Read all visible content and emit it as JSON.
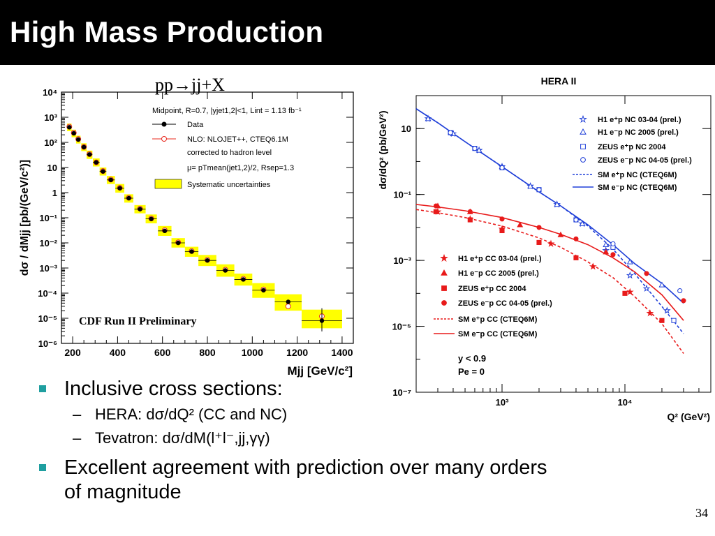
{
  "slide": {
    "title": "High Mass Production",
    "process_label": "pp→jj+X",
    "page_number": "34"
  },
  "bullets": {
    "b1": "Inclusive cross sections:",
    "b1_sub1": "HERA: dσ/dQ²  (CC and NC)",
    "b1_sub2": "Tevatron: dσ/dM(l⁺l⁻,jj,γγ)",
    "b2_line1": "Excellent agreement with prediction over many orders",
    "b2_line2": "of magnitude"
  },
  "colors": {
    "bullet_marker": "#1f9fa0",
    "data_black": "#000000",
    "nlo_red": "#e8281e",
    "systematic_yellow": "#ffff00",
    "nc_blue": "#1f3fd8",
    "cc_red": "#e81a1a"
  },
  "chart_data": [
    {
      "type": "scatter",
      "title": "",
      "xlabel": "Mjj [GeV/c²]",
      "ylabel": "dσ / dMjj [pb/(GeV/c²)]",
      "xlim": [
        150,
        1450
      ],
      "ylim": [
        1e-06,
        10000
      ],
      "y_scale": "log",
      "x_ticks": [
        "200",
        "400",
        "600",
        "800",
        "1000",
        "1200",
        "1400"
      ],
      "y_ticks": [
        "10⁴",
        "10³",
        "10²",
        "10",
        "1",
        "10⁻¹",
        "10⁻²",
        "10⁻³",
        "10⁻⁴",
        "10⁻⁵",
        "10⁻⁶"
      ],
      "legend_position": "top-right",
      "legend_header": "Midpoint, R=0.7, |yjet1,2|<1, Lint = 1.13 fb⁻¹",
      "legend": [
        "Data",
        "NLO: NLOJET++, CTEQ6.1M",
        "corrected to hadron level",
        "μ= pTmean(jet1,2)/2, Rsep=1.3",
        "Systematic uncertainties"
      ],
      "annotation": "CDF Run II Preliminary",
      "series": [
        {
          "name": "Data",
          "points": [
            [
              185,
              400
            ],
            [
              205,
              230
            ],
            [
              225,
              130
            ],
            [
              250,
              65
            ],
            [
              275,
              33
            ],
            [
              305,
              16
            ],
            [
              335,
              7
            ],
            [
              370,
              3.2
            ],
            [
              410,
              1.5
            ],
            [
              450,
              0.6
            ],
            [
              500,
              0.22
            ],
            [
              550,
              0.09
            ],
            [
              610,
              0.03
            ],
            [
              670,
              0.01
            ],
            [
              730,
              0.0045
            ],
            [
              800,
              0.002
            ],
            [
              880,
              0.0008
            ],
            [
              960,
              0.00035
            ],
            [
              1050,
              0.00013
            ],
            [
              1160,
              4.5e-05
            ],
            [
              1310,
              8e-06
            ]
          ],
          "y_err": [
            [
              1310,
              3e-06,
              2.5e-05
            ]
          ]
        },
        {
          "name": "NLO: NLOJET++, CTEQ6.1M",
          "points": [
            [
              185,
              420
            ],
            [
              205,
              240
            ],
            [
              225,
              135
            ],
            [
              250,
              66
            ],
            [
              275,
              34
            ],
            [
              305,
              16
            ],
            [
              335,
              7.2
            ],
            [
              370,
              3.3
            ],
            [
              410,
              1.55
            ],
            [
              450,
              0.62
            ],
            [
              500,
              0.23
            ],
            [
              550,
              0.093
            ],
            [
              610,
              0.032
            ],
            [
              670,
              0.0105
            ],
            [
              730,
              0.0047
            ],
            [
              800,
              0.0021
            ],
            [
              880,
              0.00085
            ],
            [
              960,
              0.00037
            ],
            [
              1050,
              0.00014
            ],
            [
              1160,
              3e-05
            ],
            [
              1310,
              1.2e-05
            ]
          ]
        },
        {
          "name": "Systematic uncertainties",
          "boxes": [
            [
              175,
              195,
              280,
              560
            ],
            [
              195,
              215,
              160,
              320
            ],
            [
              215,
              235,
              90,
              185
            ],
            [
              238,
              262,
              45,
              92
            ],
            [
              262,
              288,
              22,
              47
            ],
            [
              290,
              320,
              11,
              23
            ],
            [
              320,
              350,
              4.8,
              10
            ],
            [
              352,
              388,
              2.2,
              4.6
            ],
            [
              390,
              430,
              1,
              2.2
            ],
            [
              430,
              470,
              0.4,
              0.86
            ],
            [
              475,
              525,
              0.15,
              0.32
            ],
            [
              525,
              575,
              0.06,
              0.135
            ],
            [
              580,
              640,
              0.019,
              0.047
            ],
            [
              640,
              700,
              0.0065,
              0.0155
            ],
            [
              700,
              760,
              0.0028,
              0.007
            ],
            [
              760,
              840,
              0.0012,
              0.0033
            ],
            [
              840,
              920,
              0.00045,
              0.0014
            ],
            [
              920,
              1000,
              0.0002,
              0.0006
            ],
            [
              1000,
              1100,
              6.5e-05,
              0.00025
            ],
            [
              1100,
              1220,
              2e-05,
              9e-05
            ],
            [
              1220,
              1400,
              4e-06,
              2.2e-05
            ]
          ]
        }
      ]
    },
    {
      "type": "scatter",
      "title": "HERA II",
      "xlabel": "Q² (GeV²)",
      "ylabel": "dσ/dQ² (pb/GeV²)",
      "x_scale": "log",
      "y_scale": "log",
      "xlim": [
        200,
        50000
      ],
      "ylim": [
        1e-07,
        100
      ],
      "x_ticks": [
        "10³",
        "10⁴"
      ],
      "y_ticks": [
        "10",
        "10⁻¹",
        "10⁻³",
        "10⁻⁵",
        "10⁻⁷"
      ],
      "legend_nc": [
        "H1 e⁺p NC 03-04 (prel.)",
        "H1 e⁻p NC 2005 (prel.)",
        "ZEUS e⁺p NC 2004",
        "ZEUS e⁻p NC 04-05 (prel.)",
        "SM e⁺p NC (CTEQ6M)",
        "SM e⁻p NC (CTEQ6M)"
      ],
      "legend_cc": [
        "H1 e⁺p CC 03-04 (prel.)",
        "H1 e⁻p CC 2005 (prel.)",
        "ZEUS e⁺p CC 2004",
        "ZEUS e⁻p CC 04-05 (prel.)",
        "SM e⁺p CC (CTEQ6M)",
        "SM e⁻p CC (CTEQ6M)"
      ],
      "cuts": [
        "y < 0.9",
        "Pe = 0"
      ],
      "series": [
        {
          "name": "SM e⁻p NC (CTEQ6M)",
          "line": "solid",
          "color": "#1f3fd8",
          "points": [
            [
              200,
              40
            ],
            [
              300,
              15
            ],
            [
              500,
              4
            ],
            [
              1000,
              0.7
            ],
            [
              2000,
              0.12
            ],
            [
              3000,
              0.045
            ],
            [
              5000,
              0.012
            ],
            [
              8000,
              0.003
            ],
            [
              12000,
              0.0008
            ],
            [
              20000,
              0.0002
            ],
            [
              30000,
              5e-05
            ]
          ]
        },
        {
          "name": "SM e⁺p NC (CTEQ6M)",
          "line": "dashed",
          "color": "#1f3fd8",
          "points": [
            [
              200,
              40
            ],
            [
              300,
              15
            ],
            [
              500,
              4
            ],
            [
              1000,
              0.7
            ],
            [
              2000,
              0.12
            ],
            [
              3000,
              0.045
            ],
            [
              5000,
              0.011
            ],
            [
              8000,
              0.0022
            ],
            [
              12000,
              0.0004
            ],
            [
              20000,
              4e-05
            ],
            [
              30000,
              6e-06
            ]
          ]
        },
        {
          "name": "SM e⁻p CC (CTEQ6M)",
          "line": "solid",
          "color": "#e81a1a",
          "points": [
            [
              200,
              0.05
            ],
            [
              300,
              0.042
            ],
            [
              500,
              0.032
            ],
            [
              1000,
              0.02
            ],
            [
              2000,
              0.01
            ],
            [
              3000,
              0.0062
            ],
            [
              5000,
              0.003
            ],
            [
              8000,
              0.0012
            ],
            [
              12000,
              0.00045
            ],
            [
              20000,
              9e-05
            ],
            [
              30000,
              1.5e-05
            ]
          ]
        },
        {
          "name": "SM e⁺p CC (CTEQ6M)",
          "line": "dashed",
          "color": "#e81a1a",
          "points": [
            [
              200,
              0.035
            ],
            [
              300,
              0.028
            ],
            [
              500,
              0.02
            ],
            [
              1000,
              0.011
            ],
            [
              2000,
              0.0048
            ],
            [
              3000,
              0.0025
            ],
            [
              5000,
              0.0009
            ],
            [
              8000,
              0.0003
            ],
            [
              12000,
              8e-05
            ],
            [
              20000,
              1.2e-05
            ],
            [
              30000,
              1.5e-06
            ]
          ]
        },
        {
          "name": "H1 e⁺p NC 03-04 (prel.)",
          "marker": "star-open",
          "color": "#1f3fd8",
          "points": [
            [
              250,
              20
            ],
            [
              400,
              7
            ],
            [
              650,
              2.2
            ],
            [
              1000,
              0.7
            ],
            [
              1700,
              0.18
            ],
            [
              2800,
              0.05
            ],
            [
              4500,
              0.013
            ],
            [
              7000,
              0.002
            ],
            [
              11000,
              0.00035
            ],
            [
              15000,
              0.00014
            ],
            [
              22000,
              3e-05
            ]
          ]
        },
        {
          "name": "H1 e⁻p NC 2005 (prel.)",
          "marker": "triangle-open",
          "color": "#1f3fd8",
          "points": [
            [
              250,
              20
            ],
            [
              400,
              7
            ],
            [
              650,
              2.2
            ],
            [
              1000,
              0.7
            ],
            [
              1700,
              0.18
            ],
            [
              2800,
              0.05
            ],
            [
              4500,
              0.013
            ],
            [
              7000,
              0.003
            ],
            [
              11000,
              0.0009
            ],
            [
              20000,
              0.00018
            ]
          ]
        },
        {
          "name": "ZEUS e⁺p NC 2004",
          "marker": "square-open",
          "color": "#1f3fd8",
          "points": [
            [
              380,
              7.5
            ],
            [
              600,
              2.5
            ],
            [
              1000,
              0.65
            ],
            [
              2000,
              0.14
            ],
            [
              4000,
              0.017
            ],
            [
              8000,
              0.0025
            ],
            [
              25000,
              1.5e-05
            ]
          ]
        },
        {
          "name": "ZEUS e⁻p NC 04-05 (prel.)",
          "marker": "circle-open",
          "color": "#1f3fd8",
          "points": [
            [
              380,
              7.5
            ],
            [
              600,
              2.5
            ],
            [
              1000,
              0.65
            ],
            [
              2000,
              0.14
            ],
            [
              4000,
              0.017
            ],
            [
              8000,
              0.0032
            ],
            [
              28000,
              0.00012
            ]
          ]
        },
        {
          "name": "H1 e⁺p CC 03-04 (prel.)",
          "marker": "star",
          "color": "#e81a1a",
          "points": [
            [
              300,
              0.03
            ],
            [
              550,
              0.018
            ],
            [
              1000,
              0.009
            ],
            [
              2500,
              0.0032
            ],
            [
              5500,
              0.00065
            ],
            [
              11000,
              0.00011
            ],
            [
              16000,
              2.5e-05
            ]
          ]
        },
        {
          "name": "H1 e⁻p CC 2005 (prel.)",
          "marker": "triangle",
          "color": "#e81a1a",
          "points": [
            [
              300,
              0.045
            ],
            [
              550,
              0.03
            ],
            [
              1400,
              0.012
            ],
            [
              3000,
              0.006
            ],
            [
              7000,
              0.0018
            ]
          ]
        },
        {
          "name": "ZEUS e⁺p CC 2004",
          "marker": "square",
          "color": "#e81a1a",
          "points": [
            [
              290,
              0.03
            ],
            [
              550,
              0.017
            ],
            [
              1000,
              0.008
            ],
            [
              2000,
              0.0035
            ],
            [
              4000,
              0.0012
            ],
            [
              10000,
              0.0001
            ],
            [
              20000,
              1.5e-05
            ]
          ]
        },
        {
          "name": "ZEUS e⁻p CC 04-05 (prel.)",
          "marker": "circle",
          "color": "#e81a1a",
          "points": [
            [
              290,
              0.045
            ],
            [
              550,
              0.03
            ],
            [
              1000,
              0.018
            ],
            [
              2000,
              0.01
            ],
            [
              4000,
              0.0045
            ],
            [
              8000,
              0.0015
            ],
            [
              15000,
              0.0004
            ],
            [
              30000,
              6e-05
            ]
          ]
        }
      ]
    }
  ]
}
